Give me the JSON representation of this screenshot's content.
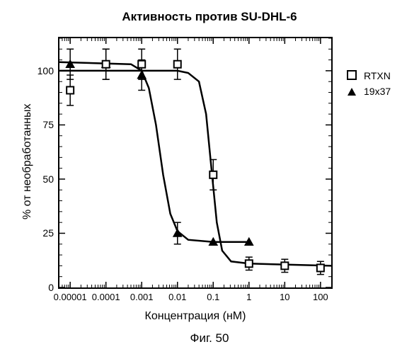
{
  "chart": {
    "type": "line-scatter",
    "title": "Активность против SU-DHL-6",
    "xlabel": "Концентрация (нМ)",
    "ylabel": "% от необработанных",
    "caption": "Фиг. 50",
    "background_color": "#ffffff",
    "axis_color": "#000000",
    "text_color": "#000000",
    "title_fontsize": 17,
    "label_fontsize": 16,
    "tick_fontsize": 14,
    "xscale": "log",
    "xlim_log10": [
      -5.3,
      2.3
    ],
    "ylim": [
      0,
      115
    ],
    "yticks": [
      0,
      25,
      50,
      75,
      100
    ],
    "xticks_log10": [
      -5,
      -4,
      -3,
      -2,
      -1,
      0,
      1,
      2
    ],
    "xtick_labels": [
      "0.00001",
      "0.0001",
      "0.001",
      "0.01",
      "0.1",
      "1",
      "10",
      "100"
    ],
    "legend": [
      {
        "marker": "open-square",
        "label": "RTXN",
        "color": "#000000"
      },
      {
        "marker": "filled-triangle",
        "label": "19x37",
        "color": "#000000"
      }
    ],
    "series": {
      "rtxn": {
        "color": "#000000",
        "marker": "open-square",
        "marker_size": 10,
        "linewidth": 2.5,
        "points": [
          {
            "logx": -5.0,
            "y": 91,
            "err": 7
          },
          {
            "logx": -4.0,
            "y": 103,
            "err": 7
          },
          {
            "logx": -3.0,
            "y": 103,
            "err": 7
          },
          {
            "logx": -2.0,
            "y": 103,
            "err": 7
          },
          {
            "logx": -1.0,
            "y": 52,
            "err": 7
          },
          {
            "logx": 0.0,
            "y": 11,
            "err": 3
          },
          {
            "logx": 1.0,
            "y": 10,
            "err": 3
          },
          {
            "logx": 2.0,
            "y": 9,
            "err": 3
          }
        ],
        "curve": [
          {
            "logx": -5.3,
            "y": 100
          },
          {
            "logx": -2.0,
            "y": 100
          },
          {
            "logx": -1.7,
            "y": 99
          },
          {
            "logx": -1.4,
            "y": 95
          },
          {
            "logx": -1.2,
            "y": 80
          },
          {
            "logx": -1.05,
            "y": 55
          },
          {
            "logx": -0.9,
            "y": 30
          },
          {
            "logx": -0.75,
            "y": 17
          },
          {
            "logx": -0.5,
            "y": 12
          },
          {
            "logx": 0.0,
            "y": 11
          },
          {
            "logx": 2.3,
            "y": 10
          }
        ]
      },
      "s19x37": {
        "color": "#000000",
        "marker": "filled-triangle",
        "marker_size": 10,
        "linewidth": 2.5,
        "points": [
          {
            "logx": -5.0,
            "y": 103,
            "err": 7
          },
          {
            "logx": -4.0,
            "y": 103,
            "err": 7
          },
          {
            "logx": -3.0,
            "y": 98,
            "err": 7
          },
          {
            "logx": -2.0,
            "y": 25,
            "err": 5
          },
          {
            "logx": -1.0,
            "y": 21,
            "err": 0
          },
          {
            "logx": 0.0,
            "y": 21,
            "err": 0
          }
        ],
        "curve": [
          {
            "logx": -5.3,
            "y": 104
          },
          {
            "logx": -3.3,
            "y": 103
          },
          {
            "logx": -3.0,
            "y": 100
          },
          {
            "logx": -2.8,
            "y": 92
          },
          {
            "logx": -2.6,
            "y": 75
          },
          {
            "logx": -2.4,
            "y": 52
          },
          {
            "logx": -2.2,
            "y": 34
          },
          {
            "logx": -2.0,
            "y": 26
          },
          {
            "logx": -1.7,
            "y": 22
          },
          {
            "logx": -1.0,
            "y": 21
          },
          {
            "logx": 0.0,
            "y": 21
          }
        ]
      }
    }
  }
}
